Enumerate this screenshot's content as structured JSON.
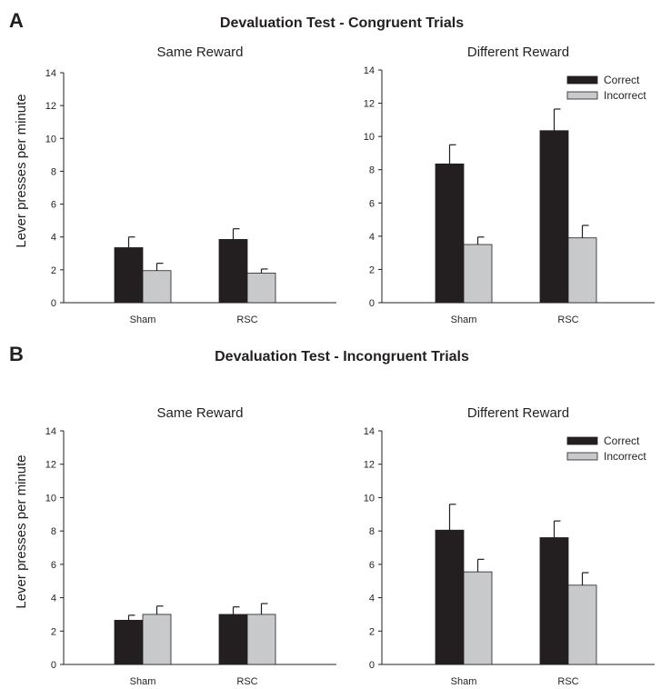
{
  "panels": [
    {
      "letter": "A",
      "title": "Devaluation Test - Congruent Trials",
      "ylabel": "Lever presses per minute"
    },
    {
      "letter": "B",
      "title": "Devaluation Test - Incongruent Trials",
      "ylabel": "Lever presses per minute"
    }
  ],
  "colors": {
    "correct": "#231f20",
    "incorrect": "#c8c9cb",
    "axis": "#231f20"
  },
  "chart_data": [
    {
      "type": "bar",
      "title": "Same Reward",
      "xlabel": "",
      "ylabel": "Lever presses per minute",
      "categories": [
        "Sham",
        "RSC"
      ],
      "series": [
        {
          "name": "Correct",
          "values": [
            3.35,
            3.85
          ],
          "errors": [
            0.65,
            0.65
          ]
        },
        {
          "name": "Incorrect",
          "values": [
            1.95,
            1.8
          ],
          "errors": [
            0.45,
            0.25
          ]
        }
      ],
      "ylim": [
        0,
        14
      ],
      "yticks": [
        "0",
        "2",
        "4",
        "6",
        "8",
        "10",
        "12",
        "14"
      ],
      "legend": null
    },
    {
      "type": "bar",
      "title": "Different Reward",
      "xlabel": "",
      "ylabel": "",
      "categories": [
        "Sham",
        "RSC"
      ],
      "series": [
        {
          "name": "Correct",
          "values": [
            8.35,
            10.35
          ],
          "errors": [
            1.15,
            1.3
          ]
        },
        {
          "name": "Incorrect",
          "values": [
            3.5,
            3.9
          ],
          "errors": [
            0.45,
            0.75
          ]
        }
      ],
      "ylim": [
        0,
        14
      ],
      "yticks": [
        "0",
        "2",
        "4",
        "6",
        "8",
        "10",
        "12",
        "14"
      ],
      "legend": "top-right"
    },
    {
      "type": "bar",
      "title": "Same Reward",
      "xlabel": "",
      "ylabel": "Lever presses per minute",
      "categories": [
        "Sham",
        "RSC"
      ],
      "series": [
        {
          "name": "Correct",
          "values": [
            2.65,
            3.0
          ],
          "errors": [
            0.3,
            0.45
          ]
        },
        {
          "name": "Incorrect",
          "values": [
            3.0,
            3.0
          ],
          "errors": [
            0.5,
            0.65
          ]
        }
      ],
      "ylim": [
        0,
        14
      ],
      "yticks": [
        "0",
        "2",
        "4",
        "6",
        "8",
        "10",
        "12",
        "14"
      ],
      "legend": null
    },
    {
      "type": "bar",
      "title": "Different Reward",
      "xlabel": "",
      "ylabel": "",
      "categories": [
        "Sham",
        "RSC"
      ],
      "series": [
        {
          "name": "Correct",
          "values": [
            8.05,
            7.6
          ],
          "errors": [
            1.55,
            1.0
          ]
        },
        {
          "name": "Incorrect",
          "values": [
            5.55,
            4.75
          ],
          "errors": [
            0.75,
            0.75
          ]
        }
      ],
      "ylim": [
        0,
        14
      ],
      "yticks": [
        "0",
        "2",
        "4",
        "6",
        "8",
        "10",
        "12",
        "14"
      ],
      "legend": "top-right"
    }
  ]
}
